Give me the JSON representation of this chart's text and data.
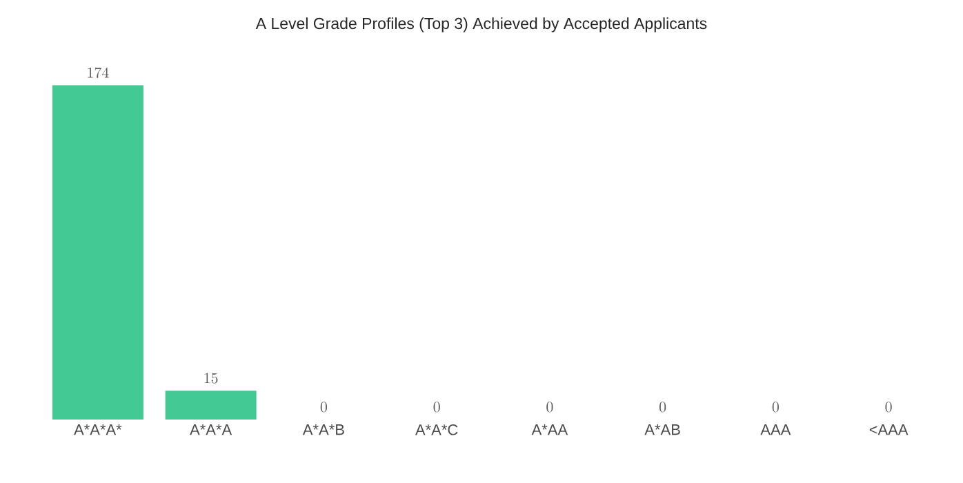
{
  "chart_data": {
    "type": "bar",
    "title": "A Level Grade Profiles (Top 3) Achieved by Accepted Applicants",
    "categories": [
      "A*A*A*",
      "A*A*A",
      "A*A*B",
      "A*A*C",
      "A*AA",
      "A*AB",
      "AAA",
      "<AAA"
    ],
    "values": [
      174,
      15,
      0,
      0,
      0,
      0,
      0,
      0
    ],
    "color": "#43ca92",
    "data_labels": true
  }
}
